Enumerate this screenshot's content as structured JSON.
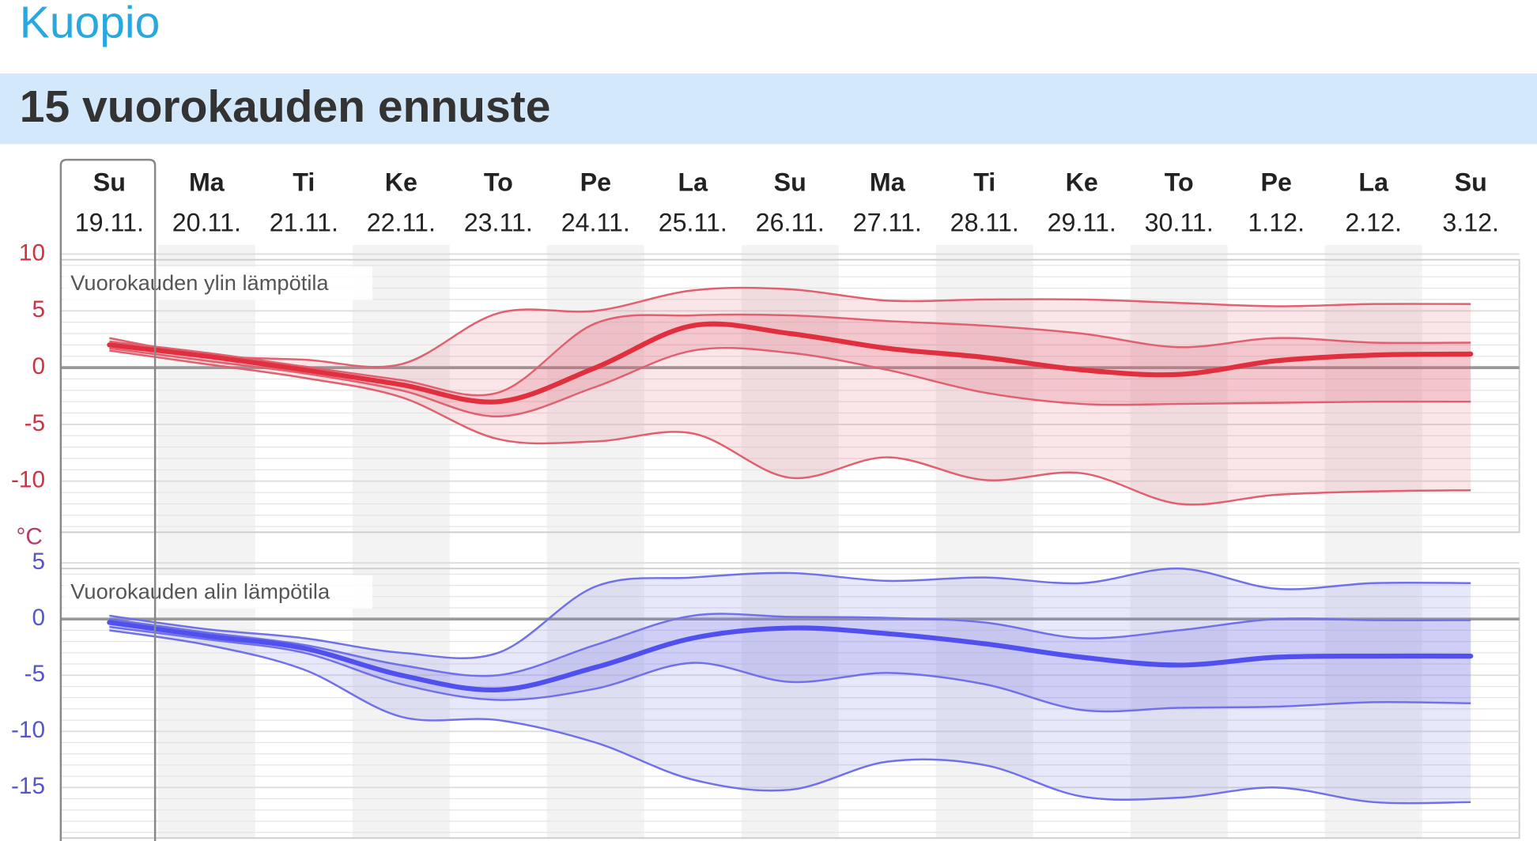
{
  "header": {
    "city": "Kuopio",
    "title": "15 vuorokauden ennuste"
  },
  "days": [
    {
      "name": "Su",
      "date": "19.11."
    },
    {
      "name": "Ma",
      "date": "20.11."
    },
    {
      "name": "Ti",
      "date": "21.11."
    },
    {
      "name": "Ke",
      "date": "22.11."
    },
    {
      "name": "To",
      "date": "23.11."
    },
    {
      "name": "Pe",
      "date": "24.11."
    },
    {
      "name": "La",
      "date": "25.11."
    },
    {
      "name": "Su",
      "date": "26.11."
    },
    {
      "name": "Ma",
      "date": "27.11."
    },
    {
      "name": "Ti",
      "date": "28.11."
    },
    {
      "name": "Ke",
      "date": "29.11."
    },
    {
      "name": "To",
      "date": "30.11."
    },
    {
      "name": "Pe",
      "date": "1.12."
    },
    {
      "name": "La",
      "date": "2.12."
    },
    {
      "name": "Su",
      "date": "3.12."
    }
  ],
  "unit": "°C",
  "chart_data": [
    {
      "type": "line",
      "title": "Vuorokauden ylin lämpötila",
      "color": "#e03040",
      "tick_color": "#cc3344",
      "band_color": "#e06070",
      "ylim": [
        -14.5,
        9.5
      ],
      "yticks": [
        -10,
        -5,
        0,
        5,
        10
      ],
      "grid": true,
      "values": [
        2.0,
        1.0,
        -0.2,
        -1.5,
        -3.0,
        0,
        3.7,
        3.0,
        1.7,
        0.9,
        -0.2,
        -0.6,
        0.6,
        1.1,
        1.2
      ],
      "inner_high": [
        2.3,
        1.3,
        0.1,
        -1.1,
        -2.2,
        3.9,
        4.6,
        4.6,
        4.1,
        3.7,
        3.0,
        1.8,
        2.6,
        2.2,
        2.2
      ],
      "inner_low": [
        1.7,
        0.6,
        -0.5,
        -2.0,
        -4.3,
        -1.7,
        1.5,
        1.3,
        -0.2,
        -2.2,
        -3.2,
        -3.2,
        -3.1,
        -3.0,
        -3.0
      ],
      "outer_high": [
        2.6,
        1.1,
        0.7,
        0.3,
        4.8,
        5.0,
        6.8,
        6.9,
        5.9,
        6.0,
        6.0,
        5.7,
        5.4,
        5.6,
        5.6
      ],
      "outer_low": [
        1.5,
        0.3,
        -0.9,
        -2.6,
        -6.3,
        -6.5,
        -5.8,
        -9.7,
        -7.9,
        -9.9,
        -9.3,
        -12.0,
        -11.2,
        -10.9,
        -10.8
      ]
    },
    {
      "type": "line",
      "title": "Vuorokauden alin lämpötila",
      "color": "#5050ee",
      "tick_color": "#5555cc",
      "band_color": "#7070e8",
      "ylim": [
        -19.5,
        4.5
      ],
      "yticks": [
        -15,
        -10,
        -5,
        0,
        5
      ],
      "grid": true,
      "values": [
        -0.3,
        -1.5,
        -2.6,
        -5.0,
        -6.3,
        -4.3,
        -1.7,
        -0.8,
        -1.3,
        -2.2,
        -3.4,
        -4.1,
        -3.4,
        -3.3,
        -3.3
      ],
      "inner_high": [
        0,
        -1.2,
        -2.3,
        -4.1,
        -5.0,
        -2.3,
        0.3,
        0.2,
        0.1,
        -0.3,
        -1.7,
        -1.0,
        0,
        -0.1,
        -0.1
      ],
      "inner_low": [
        -0.7,
        -1.8,
        -3.0,
        -5.8,
        -7.2,
        -6.2,
        -3.9,
        -5.6,
        -4.8,
        -5.8,
        -8.1,
        -7.9,
        -7.8,
        -7.4,
        -7.5
      ],
      "outer_high": [
        0.3,
        -0.9,
        -1.7,
        -3.0,
        -3.0,
        2.9,
        3.7,
        4.1,
        3.4,
        3.7,
        3.2,
        4.5,
        2.7,
        3.2,
        3.2
      ],
      "outer_low": [
        -1.0,
        -2.3,
        -4.5,
        -8.7,
        -9.0,
        -11.0,
        -14.3,
        -15.2,
        -12.7,
        -13.0,
        -15.8,
        -15.9,
        -15.0,
        -16.3,
        -16.3
      ]
    }
  ]
}
